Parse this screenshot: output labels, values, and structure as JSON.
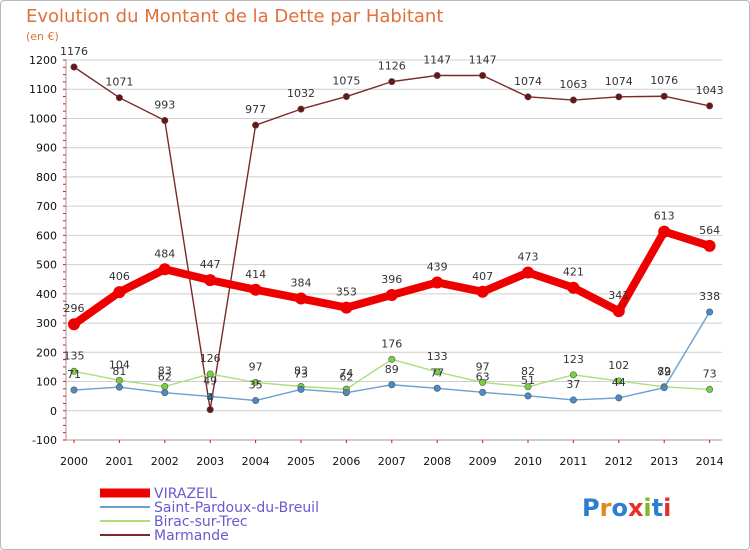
{
  "title": "Evolution du Montant de la Dette par Habitant",
  "unit": "(en €)",
  "logo_text": "Proxiti",
  "colors": {
    "title": "#e0713b",
    "legend_text": "#6a5acd",
    "grid": "#cfcfcf",
    "axis_ticks": "#ff0000"
  },
  "chart_data": {
    "type": "line",
    "x": [
      "2000",
      "2001",
      "2002",
      "2003",
      "2004",
      "2005",
      "2006",
      "2007",
      "2008",
      "2009",
      "2010",
      "2011",
      "2012",
      "2013",
      "2014"
    ],
    "ylim": [
      -100,
      1200
    ],
    "yticks": [
      -100,
      0,
      100,
      200,
      300,
      400,
      500,
      600,
      700,
      800,
      900,
      1000,
      1100,
      1200
    ],
    "grid": "horizontal",
    "legend_position": "bottom-left",
    "series": [
      {
        "name": "VIRAZEIL",
        "color": "#ee0000",
        "marker": "#ee0000",
        "values": [
          296,
          406,
          484,
          447,
          414,
          384,
          353,
          396,
          439,
          407,
          473,
          421,
          341,
          613,
          564
        ]
      },
      {
        "name": "Saint-Pardoux-du-Breuil",
        "color": "#6aa0cf",
        "marker": "#4a8cc9",
        "values": [
          71,
          81,
          62,
          49,
          35,
          73,
          62,
          89,
          77,
          63,
          51,
          37,
          44,
          79,
          338
        ]
      },
      {
        "name": "Birac-sur-Trec",
        "color": "#a8e07a",
        "marker": "#77d13f",
        "values": [
          135,
          104,
          83,
          126,
          97,
          83,
          74,
          176,
          133,
          97,
          82,
          123,
          102,
          82,
          73
        ]
      },
      {
        "name": "Marmande",
        "color": "#7a2a2a",
        "marker": "#6b1414",
        "values": [
          1176,
          1071,
          993,
          4,
          977,
          1032,
          1075,
          1126,
          1147,
          1147,
          1074,
          1063,
          1074,
          1076,
          1043
        ]
      }
    ]
  }
}
